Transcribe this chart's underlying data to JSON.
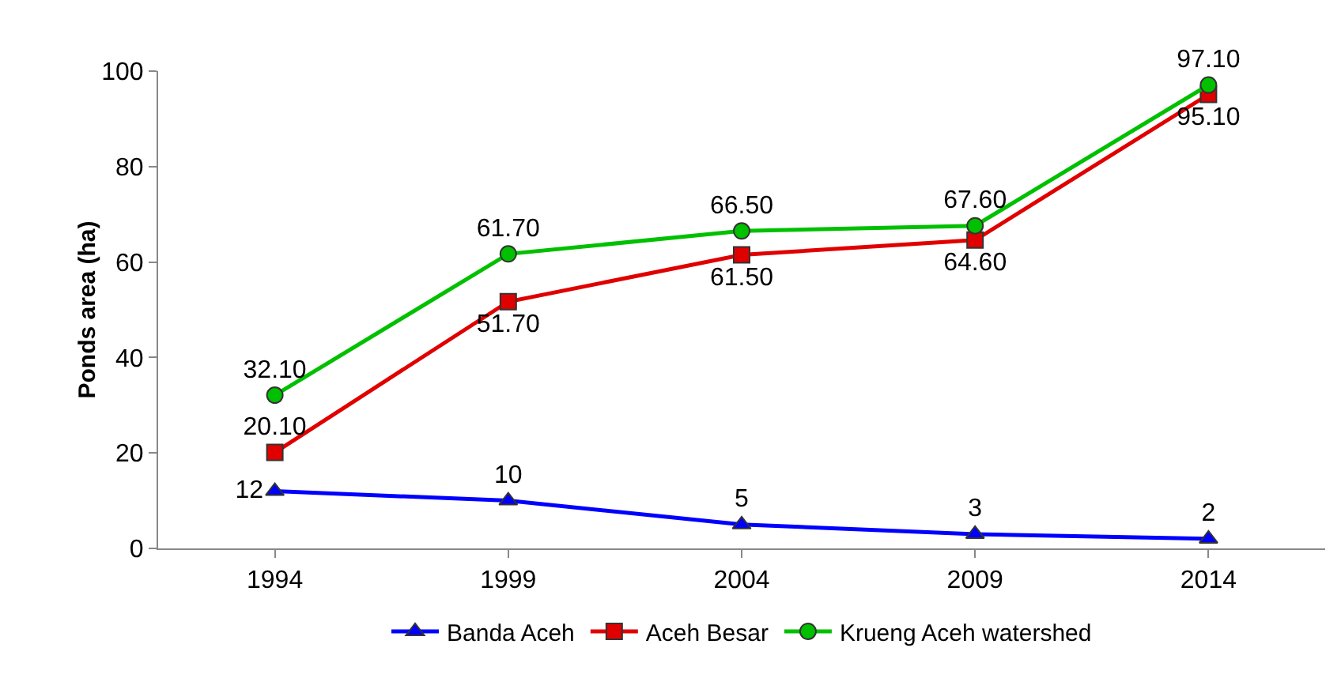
{
  "chart_data": {
    "type": "line",
    "ylabel": "Ponds area (ha)",
    "categories": [
      "1994",
      "1999",
      "2004",
      "2009",
      "2014"
    ],
    "ylim": [
      0,
      100
    ],
    "yticks": [
      0,
      20,
      40,
      60,
      80,
      100
    ],
    "grid": false,
    "legend": "bottom",
    "series": [
      {
        "name": "Banda Aceh",
        "color": "#0000ff",
        "marker": "triangle",
        "values": [
          12,
          10,
          5,
          3,
          2
        ],
        "value_labels": [
          "12",
          "10",
          "5",
          "3",
          "2"
        ]
      },
      {
        "name": "Aceh Besar",
        "color": "#e00000",
        "marker": "square",
        "values": [
          20.1,
          51.7,
          61.5,
          64.6,
          95.1
        ],
        "value_labels": [
          "20.10",
          "51.70",
          "61.50",
          "64.60",
          "95.10"
        ]
      },
      {
        "name": "Krueng Aceh watershed",
        "color": "#00c000",
        "marker": "circle",
        "values": [
          32.1,
          61.7,
          66.5,
          67.6,
          97.1
        ],
        "value_labels": [
          "32.10",
          "61.70",
          "66.50",
          "67.60",
          "97.10"
        ]
      }
    ]
  }
}
